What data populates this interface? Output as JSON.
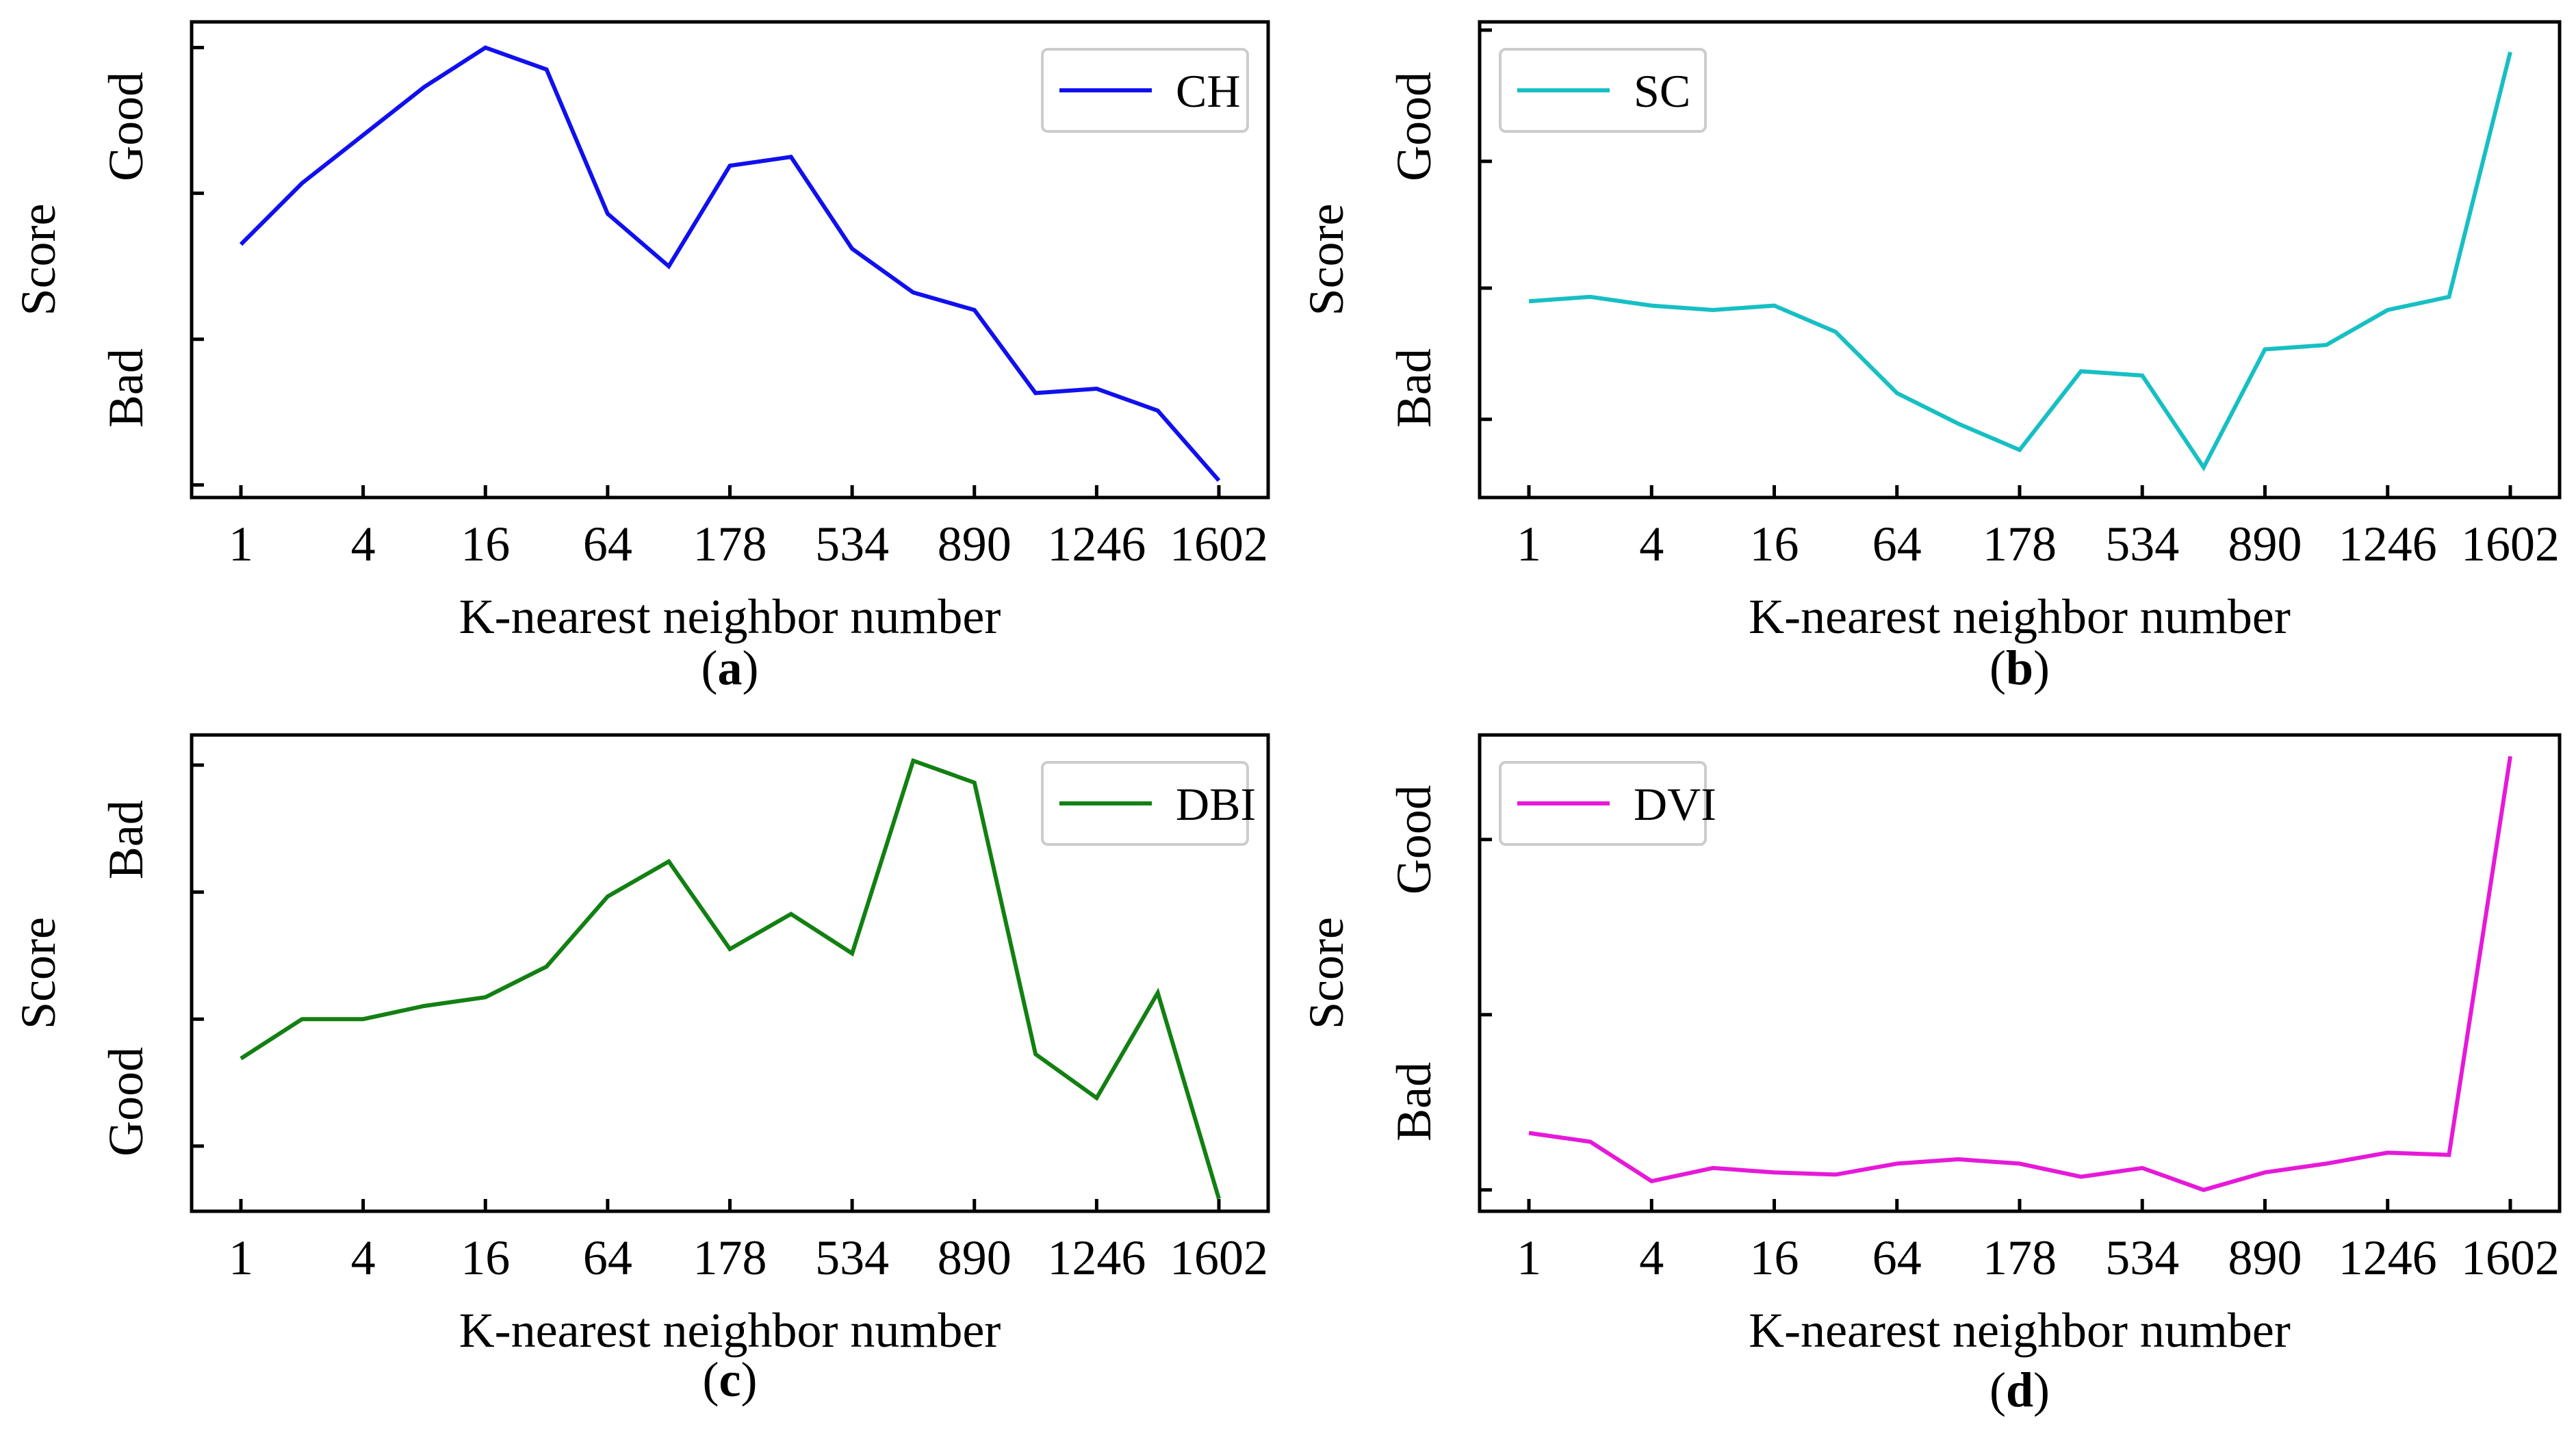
{
  "chart_data": [
    {
      "id": "a",
      "type": "line",
      "caption_letter": "a",
      "xlabel": "K-nearest neighbor number",
      "ylabel": "Score",
      "y_qual_top": "Good",
      "y_qual_bottom": "Bad",
      "xtick_labels": [
        "1",
        "4",
        "16",
        "64",
        "178",
        "534",
        "890",
        "1246",
        "1602"
      ],
      "xtick_positions": [
        0,
        2,
        4,
        6,
        8,
        10,
        12,
        14,
        16
      ],
      "x": [
        0,
        1,
        2,
        3,
        4,
        5,
        6,
        7,
        8,
        9,
        10,
        11,
        12,
        13,
        14,
        15,
        16
      ],
      "ylim": [
        -0.01,
        1.04
      ],
      "yticks": [
        0,
        0.333,
        0.667,
        1.0
      ],
      "legend_position": "top-right",
      "series": [
        {
          "name": "CH",
          "color": "#1010ee",
          "values": [
            0.55,
            0.69,
            0.8,
            0.91,
            1.0,
            0.95,
            0.62,
            0.5,
            0.73,
            0.75,
            0.54,
            0.44,
            0.4,
            0.21,
            0.22,
            0.17,
            0.01
          ]
        }
      ]
    },
    {
      "id": "b",
      "type": "line",
      "caption_letter": "b",
      "xlabel": "K-nearest neighbor number",
      "ylabel": "Score",
      "y_qual_top": "Good",
      "y_qual_bottom": "Bad",
      "xtick_labels": [
        "1",
        "4",
        "16",
        "64",
        "178",
        "534",
        "890",
        "1246",
        "1602"
      ],
      "xtick_positions": [
        0,
        2,
        4,
        6,
        8,
        10,
        12,
        14,
        16
      ],
      "x": [
        0,
        1,
        2,
        3,
        4,
        5,
        6,
        7,
        8,
        9,
        10,
        11,
        12,
        13,
        14,
        15,
        16
      ],
      "ylim": [
        -0.01,
        1.04
      ],
      "yticks": [
        0.15,
        0.45,
        0.74,
        1.04
      ],
      "legend_position": "top-left",
      "series": [
        {
          "name": "SC",
          "color": "#17bfc4",
          "values": [
            0.42,
            0.43,
            0.41,
            0.4,
            0.41,
            0.35,
            0.21,
            0.14,
            0.08,
            0.26,
            0.25,
            0.04,
            0.31,
            0.32,
            0.4,
            0.43,
            0.99
          ]
        }
      ]
    },
    {
      "id": "c",
      "type": "line",
      "caption_letter": "c",
      "xlabel": "K-nearest neighbor number",
      "ylabel": "Score",
      "y_qual_top": "Bad",
      "y_qual_bottom": "Good",
      "xtick_labels": [
        "1",
        "4",
        "16",
        "64",
        "178",
        "534",
        "890",
        "1246",
        "1602"
      ],
      "xtick_positions": [
        0,
        2,
        4,
        6,
        8,
        10,
        12,
        14,
        16
      ],
      "x": [
        0,
        1,
        2,
        3,
        4,
        5,
        6,
        7,
        8,
        9,
        10,
        11,
        12,
        13,
        14,
        15,
        16
      ],
      "ylim": [
        -0.01,
        1.04
      ],
      "yticks": [
        0.12,
        0.41,
        0.7,
        0.99
      ],
      "legend_position": "top-right",
      "series": [
        {
          "name": "DBI",
          "color": "#128012",
          "values": [
            0.32,
            0.41,
            0.41,
            0.44,
            0.46,
            0.53,
            0.69,
            0.77,
            0.57,
            0.65,
            0.56,
            1.0,
            0.95,
            0.33,
            0.23,
            0.47,
            0.0
          ]
        }
      ]
    },
    {
      "id": "d",
      "type": "line",
      "caption_letter": "d",
      "xlabel": "K-nearest neighbor number",
      "ylabel": "Score",
      "y_qual_top": "Good",
      "y_qual_bottom": "Bad",
      "xtick_labels": [
        "1",
        "4",
        "16",
        "64",
        "178",
        "534",
        "890",
        "1246",
        "1602"
      ],
      "xtick_positions": [
        0,
        2,
        4,
        6,
        8,
        10,
        12,
        14,
        16
      ],
      "x": [
        0,
        1,
        2,
        3,
        4,
        5,
        6,
        7,
        8,
        9,
        10,
        11,
        12,
        13,
        14,
        15,
        16
      ],
      "ylim": [
        -0.01,
        1.04
      ],
      "yticks": [
        0.02,
        0.42,
        0.82
      ],
      "legend_position": "top-left",
      "series": [
        {
          "name": "DVI",
          "color": "#e619d9",
          "values": [
            0.15,
            0.13,
            0.04,
            0.07,
            0.06,
            0.055,
            0.08,
            0.09,
            0.08,
            0.05,
            0.07,
            0.02,
            0.06,
            0.08,
            0.105,
            0.1,
            1.01
          ]
        }
      ]
    }
  ]
}
